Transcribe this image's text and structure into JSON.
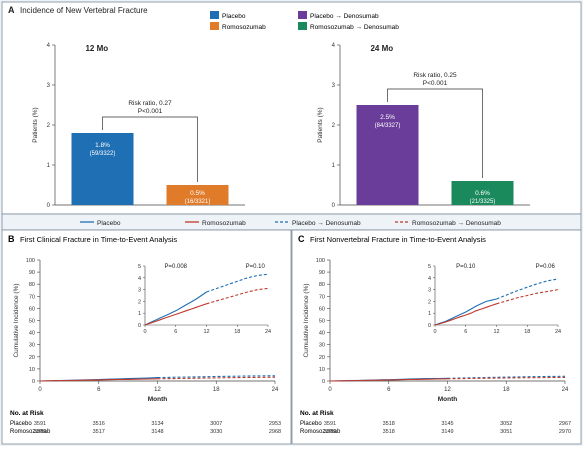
{
  "colors": {
    "placebo": "#1f6fb4",
    "romosozumab": "#e07b2a",
    "placebo_deno": "#6a3d9a",
    "romo_deno": "#1a8a5c",
    "line_placebo": "#1f6fb4",
    "line_romo": "#c0392b",
    "panel_bg": "#eef3f8"
  },
  "panel_a": {
    "letter": "A",
    "title": "Incidence of New Vertebral Fracture",
    "legend": [
      "Placebo",
      "Romosozumab",
      "Placebo → Denosumab",
      "Romosozumab → Denosumab"
    ]
  },
  "panel_b": {
    "letter": "B",
    "title": "First Clinical Fracture in Time-to-Event Analysis"
  },
  "panel_c": {
    "letter": "C",
    "title": "First Nonvertebral Fracture in Time-to-Event Analysis"
  },
  "line_legend": [
    "Placebo",
    "Romosozumab",
    "Placebo → Denosumab",
    "Romosozumab → Denosumab"
  ],
  "at_risk": {
    "header": "No. at Risk",
    "rows": [
      "Placebo",
      "Romosozumab"
    ],
    "b": {
      "placebo": [
        "3591",
        "3516",
        "3134",
        "3007",
        "2953"
      ],
      "romosozumab": [
        "3589",
        "3517",
        "3148",
        "3030",
        "2968"
      ]
    },
    "c": {
      "placebo": [
        "3591",
        "3518",
        "3145",
        "3052",
        "2967"
      ],
      "romosozumab": [
        "3589",
        "3518",
        "3149",
        "3051",
        "2970"
      ]
    }
  },
  "chart_data": [
    {
      "type": "bar",
      "panel": "A",
      "subtitle": "12 Mo",
      "ylabel": "Patients (%)",
      "ylim": [
        0,
        4
      ],
      "yticks": [
        "0",
        "1",
        "2",
        "3",
        "4"
      ],
      "bars": [
        {
          "series": "Placebo",
          "value": 1.8,
          "label1": "1.8%",
          "label2": "(59/3322)"
        },
        {
          "series": "Romosozumab",
          "value": 0.5,
          "label1": "0.5%",
          "label2": "(16/3321)"
        }
      ],
      "annotation": [
        "Risk ratio, 0.27",
        "P<0.001"
      ]
    },
    {
      "type": "bar",
      "panel": "A",
      "subtitle": "24 Mo",
      "ylabel": "Patients (%)",
      "ylim": [
        0,
        4
      ],
      "yticks": [
        "0",
        "1",
        "2",
        "3",
        "4"
      ],
      "bars": [
        {
          "series": "Placebo → Denosumab",
          "value": 2.5,
          "label1": "2.5%",
          "label2": "(84/3327)"
        },
        {
          "series": "Romosozumab → Denosumab",
          "value": 0.6,
          "label1": "0.6%",
          "label2": "(21/3325)"
        }
      ],
      "annotation": [
        "Risk ratio, 0.25",
        "P<0.001"
      ]
    },
    {
      "type": "line",
      "panel": "B",
      "xlabel": "Month",
      "ylabel": "Cumulative Incidence (%)",
      "xlim": [
        0,
        24
      ],
      "ylim": [
        0,
        100
      ],
      "xticks": [
        "0",
        "6",
        "12",
        "18",
        "24"
      ],
      "yticks": [
        "0",
        "10",
        "20",
        "30",
        "40",
        "50",
        "60",
        "70",
        "80",
        "90",
        "100"
      ],
      "inset": {
        "xlim": [
          0,
          24
        ],
        "ylim": [
          0,
          5
        ],
        "xticks": [
          "0",
          "6",
          "12",
          "18",
          "24"
        ],
        "yticks": [
          "0",
          "1",
          "2",
          "3",
          "4",
          "5"
        ],
        "p_values": [
          "P=0.008",
          "P=0.10"
        ]
      },
      "series": [
        {
          "name": "Placebo",
          "x": [
            0,
            1,
            2,
            3,
            4,
            5,
            6,
            7,
            8,
            9,
            10,
            11,
            12
          ],
          "y": [
            0,
            0.2,
            0.4,
            0.6,
            0.8,
            1.0,
            1.2,
            1.45,
            1.7,
            1.95,
            2.2,
            2.5,
            2.8
          ]
        },
        {
          "name": "Romosozumab",
          "x": [
            0,
            1,
            2,
            3,
            4,
            5,
            6,
            7,
            8,
            9,
            10,
            11,
            12
          ],
          "y": [
            0,
            0.15,
            0.3,
            0.45,
            0.6,
            0.75,
            0.9,
            1.05,
            1.2,
            1.35,
            1.5,
            1.65,
            1.8
          ]
        },
        {
          "name": "Placebo → Denosumab",
          "x": [
            12,
            14,
            16,
            18,
            20,
            22,
            24
          ],
          "y": [
            2.8,
            3.1,
            3.4,
            3.7,
            4.0,
            4.2,
            4.3
          ]
        },
        {
          "name": "Romosozumab → Denosumab",
          "x": [
            12,
            14,
            16,
            18,
            20,
            22,
            24
          ],
          "y": [
            1.8,
            2.05,
            2.3,
            2.55,
            2.8,
            3.0,
            3.1
          ]
        }
      ]
    },
    {
      "type": "line",
      "panel": "C",
      "xlabel": "Month",
      "ylabel": "Cumulative Incidence (%)",
      "xlim": [
        0,
        24
      ],
      "ylim": [
        0,
        100
      ],
      "xticks": [
        "0",
        "6",
        "12",
        "18",
        "24"
      ],
      "yticks": [
        "0",
        "10",
        "20",
        "30",
        "40",
        "50",
        "60",
        "70",
        "80",
        "90",
        "100"
      ],
      "inset": {
        "xlim": [
          0,
          24
        ],
        "ylim": [
          0,
          5
        ],
        "xticks": [
          "0",
          "6",
          "12",
          "18",
          "24"
        ],
        "yticks": [
          "0",
          "1",
          "2",
          "3",
          "4",
          "5"
        ],
        "p_values": [
          "P=0.10",
          "P=0.06"
        ]
      },
      "series": [
        {
          "name": "Placebo",
          "x": [
            0,
            1,
            2,
            3,
            4,
            5,
            6,
            7,
            8,
            9,
            10,
            11,
            12
          ],
          "y": [
            0,
            0.15,
            0.3,
            0.5,
            0.7,
            0.9,
            1.1,
            1.35,
            1.6,
            1.8,
            2.0,
            2.1,
            2.2
          ]
        },
        {
          "name": "Romosozumab",
          "x": [
            0,
            1,
            2,
            3,
            4,
            5,
            6,
            7,
            8,
            9,
            10,
            11,
            12
          ],
          "y": [
            0,
            0.12,
            0.25,
            0.4,
            0.55,
            0.7,
            0.85,
            1.0,
            1.2,
            1.35,
            1.5,
            1.65,
            1.8
          ]
        },
        {
          "name": "Placebo → Denosumab",
          "x": [
            12,
            14,
            16,
            18,
            20,
            22,
            24
          ],
          "y": [
            2.2,
            2.55,
            2.9,
            3.2,
            3.5,
            3.75,
            3.9
          ]
        },
        {
          "name": "Romosozumab → Denosumab",
          "x": [
            12,
            14,
            16,
            18,
            20,
            22,
            24
          ],
          "y": [
            1.8,
            2.05,
            2.3,
            2.5,
            2.7,
            2.85,
            3.0
          ]
        }
      ]
    }
  ]
}
